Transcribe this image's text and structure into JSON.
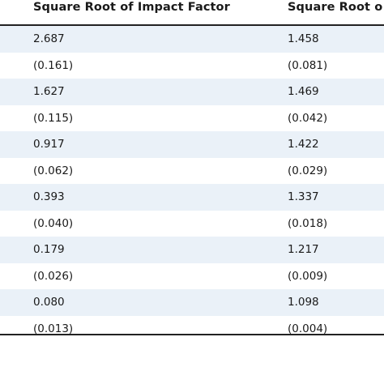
{
  "table": {
    "headers": [
      "Square Root of Impact Factor",
      "Square Root o"
    ],
    "rows": [
      [
        "2.687",
        "1.458"
      ],
      [
        "(0.161)",
        "(0.081)"
      ],
      [
        "1.627",
        "1.469"
      ],
      [
        "(0.115)",
        "(0.042)"
      ],
      [
        "0.917",
        "1.422"
      ],
      [
        "(0.062)",
        "(0.029)"
      ],
      [
        "0.393",
        "1.337"
      ],
      [
        "(0.040)",
        "(0.018)"
      ],
      [
        "0.179",
        "1.217"
      ],
      [
        "(0.026)",
        "(0.009)"
      ],
      [
        "0.080",
        "1.098"
      ],
      [
        "(0.013)",
        "(0.004)"
      ]
    ],
    "colors": {
      "shaded_row": "#eaf1f8",
      "rule": "#222222",
      "text": "#1a1a1a"
    }
  }
}
